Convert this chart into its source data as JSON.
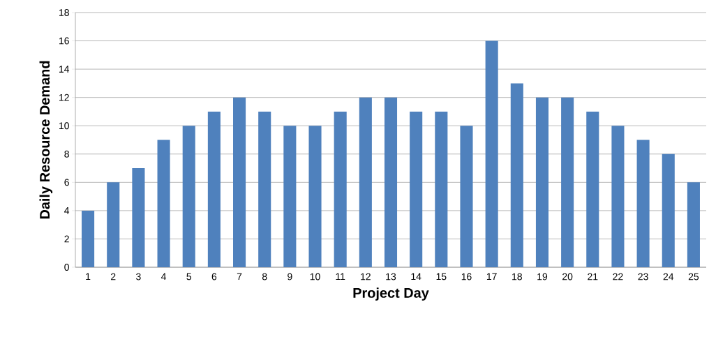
{
  "chart_data": {
    "type": "bar",
    "xlabel": "Project Day",
    "ylabel": "Daily Resource Demand",
    "categories": [
      "1",
      "2",
      "3",
      "4",
      "5",
      "6",
      "7",
      "8",
      "9",
      "10",
      "11",
      "12",
      "13",
      "14",
      "15",
      "16",
      "17",
      "18",
      "19",
      "20",
      "21",
      "22",
      "23",
      "24",
      "25"
    ],
    "values": [
      4,
      6,
      7,
      9,
      10,
      11,
      12,
      11,
      10,
      10,
      11,
      12,
      12,
      11,
      11,
      10,
      16,
      13,
      12,
      12,
      11,
      10,
      9,
      8,
      6
    ],
    "color": "#4f81bd",
    "ylim": [
      0,
      18
    ],
    "yticks": [
      0,
      2,
      4,
      6,
      8,
      10,
      12,
      14,
      16,
      18
    ],
    "grid": "y"
  }
}
